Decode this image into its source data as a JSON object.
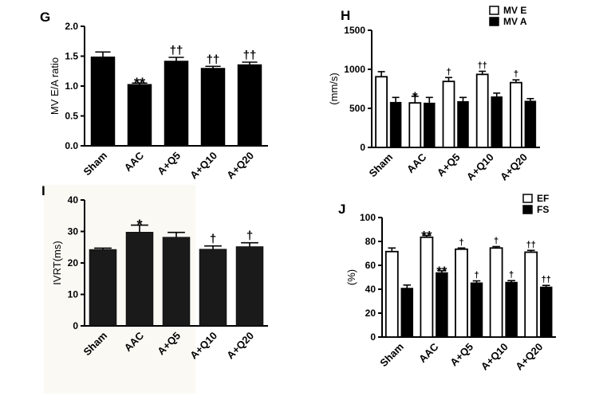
{
  "chart_data": [
    {
      "panel": "G",
      "type": "bar",
      "categories": [
        "Sham",
        "AAC",
        "A+Q5",
        "A+Q10",
        "A+Q20"
      ],
      "series": [
        {
          "name": "MV E/A ratio",
          "values": [
            1.49,
            1.03,
            1.42,
            1.3,
            1.36
          ],
          "errors": [
            0.08,
            0.02,
            0.06,
            0.03,
            0.04
          ],
          "annotations": [
            "",
            "**",
            "††",
            "††",
            "††"
          ]
        }
      ],
      "ylabel": "MV E/A ratio",
      "ylim": [
        0,
        2.0
      ],
      "yticks": [
        0,
        0.5,
        1.0,
        1.5,
        2.0
      ],
      "ytick_labels": [
        "0.0",
        "0.5",
        "1.0",
        "1.5",
        "2.0"
      ],
      "legend": []
    },
    {
      "panel": "H",
      "type": "bar",
      "categories": [
        "Sham",
        "AAC",
        "A+Q5",
        "A+Q10",
        "A+Q20"
      ],
      "series": [
        {
          "name": "MV E",
          "fill": "white",
          "values": [
            905,
            570,
            845,
            935,
            830
          ],
          "errors": [
            65,
            85,
            50,
            40,
            35
          ],
          "annotations": [
            "",
            "*",
            "†",
            "††",
            "†"
          ]
        },
        {
          "name": "MV A",
          "fill": "black",
          "values": [
            580,
            570,
            590,
            650,
            595
          ],
          "errors": [
            60,
            70,
            50,
            45,
            30
          ],
          "annotations": [
            "",
            "",
            "",
            "",
            ""
          ]
        }
      ],
      "ylabel": "(mm/s)",
      "ylim": [
        0,
        1500
      ],
      "yticks": [
        0,
        500,
        1000,
        1500
      ],
      "ytick_labels": [
        "0",
        "500",
        "1000",
        "1500"
      ],
      "legend": [
        "MV E",
        "MV A"
      ]
    },
    {
      "panel": "I",
      "type": "bar",
      "categories": [
        "Sham",
        "AAC",
        "A+Q5",
        "A+Q10",
        "A+Q20"
      ],
      "series": [
        {
          "name": "IVRT(ms)",
          "values": [
            24.3,
            29.8,
            28.2,
            24.4,
            25.2
          ],
          "errors": [
            0.4,
            2.2,
            1.5,
            1.0,
            1.2
          ],
          "annotations": [
            "",
            "*",
            "",
            "†",
            "†"
          ]
        }
      ],
      "ylabel": "IVRT(ms)",
      "ylim": [
        0,
        40
      ],
      "yticks": [
        0,
        10,
        20,
        30,
        40
      ],
      "ytick_labels": [
        "0",
        "10",
        "20",
        "30",
        "40"
      ],
      "legend": []
    },
    {
      "panel": "J",
      "type": "bar",
      "categories": [
        "Sham",
        "AAC",
        "A+Q5",
        "A+Q10",
        "A+Q20"
      ],
      "series": [
        {
          "name": "EF",
          "fill": "white",
          "values": [
            71.5,
            83.5,
            73.5,
            74.5,
            71.0
          ],
          "errors": [
            3.0,
            1.5,
            1.0,
            1.2,
            1.5
          ],
          "annotations": [
            "",
            "**",
            "†",
            "†",
            "††"
          ]
        },
        {
          "name": "FS",
          "fill": "black",
          "values": [
            41.0,
            54.0,
            45.5,
            46.0,
            42.0
          ],
          "errors": [
            2.5,
            1.5,
            1.5,
            1.2,
            1.2
          ],
          "annotations": [
            "",
            "**",
            "†",
            "†",
            "††"
          ]
        }
      ],
      "ylabel": "(%)",
      "ylim": [
        0,
        100
      ],
      "yticks": [
        0,
        20,
        40,
        60,
        80,
        100
      ],
      "ytick_labels": [
        "0",
        "20",
        "40",
        "60",
        "80",
        "100"
      ],
      "legend": [
        "EF",
        "FS"
      ]
    }
  ]
}
